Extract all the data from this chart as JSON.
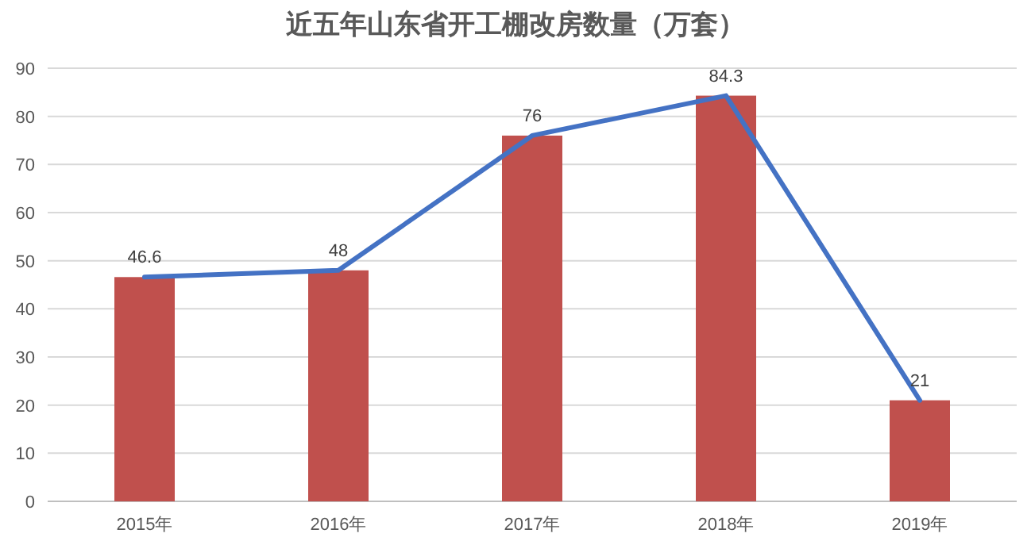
{
  "chart_data": {
    "type": "bar",
    "title": "近五年山东省开工棚改房数量（万套）",
    "categories": [
      "2015年",
      "2016年",
      "2017年",
      "2018年",
      "2019年"
    ],
    "series": [
      {
        "color": "#c0504d",
        "values": [
          46.6,
          48,
          76,
          84.3,
          21
        ]
      },
      {
        "type": "line",
        "color": "#4472c4",
        "values": [
          46.6,
          48,
          76,
          84.3,
          21
        ],
        "value_labels": [
          "46.6",
          "48",
          "76",
          "84.3",
          "21"
        ]
      }
    ],
    "ylim": [
      0,
      90
    ],
    "yticks": [
      0,
      10,
      20,
      30,
      40,
      50,
      60,
      70,
      80,
      90
    ],
    "grid": "y",
    "marker": "none",
    "line_style": "solid"
  }
}
